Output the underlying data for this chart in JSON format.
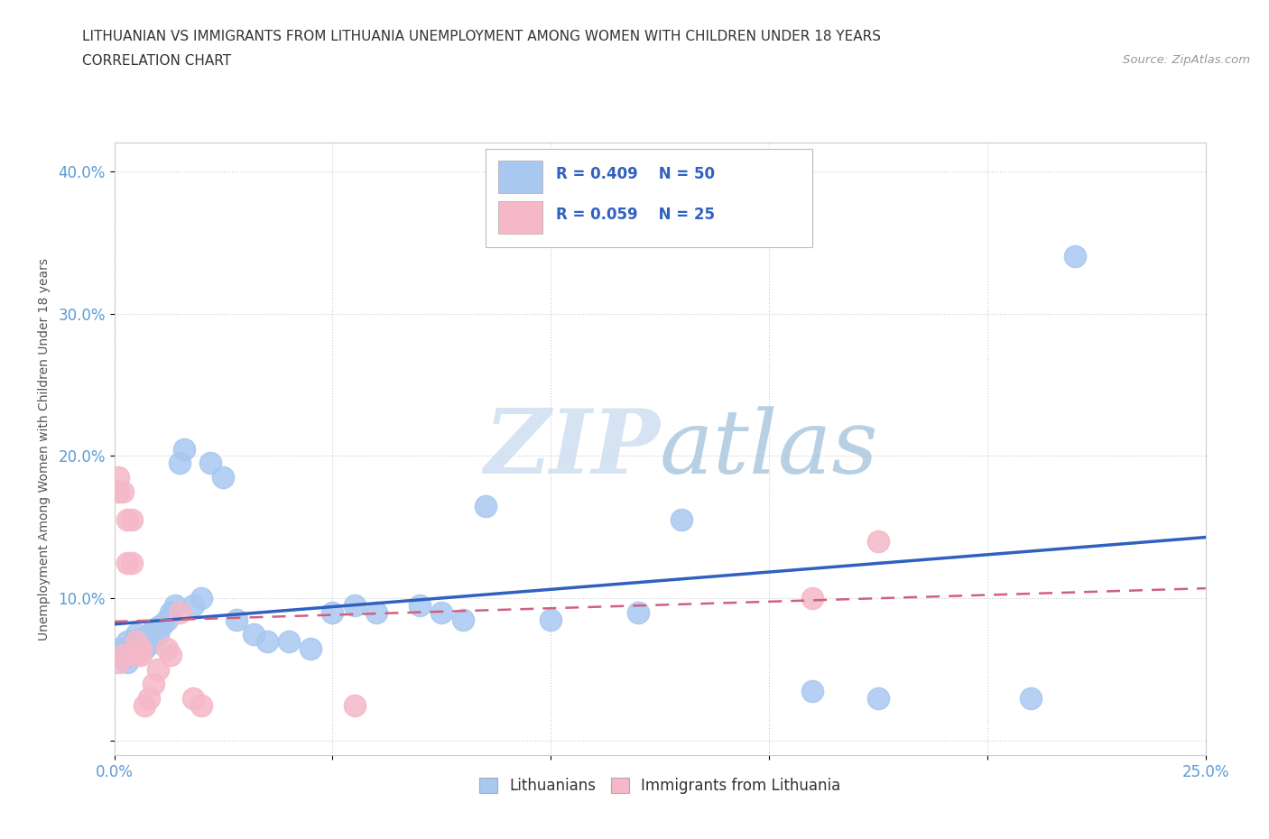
{
  "title_line1": "LITHUANIAN VS IMMIGRANTS FROM LITHUANIA UNEMPLOYMENT AMONG WOMEN WITH CHILDREN UNDER 18 YEARS",
  "title_line2": "CORRELATION CHART",
  "source_text": "Source: ZipAtlas.com",
  "ylabel": "Unemployment Among Women with Children Under 18 years",
  "xlim": [
    0.0,
    0.25
  ],
  "ylim": [
    -0.01,
    0.42
  ],
  "xticks": [
    0.0,
    0.05,
    0.1,
    0.15,
    0.2,
    0.25
  ],
  "yticks": [
    0.0,
    0.1,
    0.2,
    0.3,
    0.4
  ],
  "xtick_labels": [
    "0.0%",
    "",
    "",
    "",
    "",
    "25.0%"
  ],
  "ytick_labels": [
    "",
    "10.0%",
    "20.0%",
    "30.0%",
    "40.0%"
  ],
  "background_color": "#ffffff",
  "watermark_text1": "ZIP",
  "watermark_text2": "atlas",
  "legend_R1": "R = 0.409",
  "legend_N1": "N = 50",
  "legend_R2": "R = 0.059",
  "legend_N2": "N = 25",
  "color_blue": "#a8c8f0",
  "color_pink": "#f5b8c8",
  "color_blue_line": "#3060c0",
  "color_pink_line": "#d06080",
  "color_tick": "#5b9bd5",
  "blue_x": [
    0.001,
    0.001,
    0.002,
    0.002,
    0.003,
    0.003,
    0.004,
    0.004,
    0.005,
    0.005,
    0.005,
    0.006,
    0.006,
    0.007,
    0.007,
    0.008,
    0.008,
    0.009,
    0.009,
    0.01,
    0.01,
    0.011,
    0.012,
    0.013,
    0.014,
    0.015,
    0.016,
    0.018,
    0.02,
    0.022,
    0.025,
    0.028,
    0.032,
    0.035,
    0.04,
    0.045,
    0.05,
    0.055,
    0.06,
    0.07,
    0.075,
    0.08,
    0.085,
    0.1,
    0.12,
    0.13,
    0.16,
    0.175,
    0.21,
    0.22
  ],
  "blue_y": [
    0.06,
    0.065,
    0.058,
    0.062,
    0.055,
    0.07,
    0.06,
    0.068,
    0.065,
    0.07,
    0.075,
    0.068,
    0.072,
    0.065,
    0.07,
    0.068,
    0.075,
    0.072,
    0.078,
    0.08,
    0.075,
    0.082,
    0.085,
    0.09,
    0.095,
    0.195,
    0.205,
    0.095,
    0.1,
    0.195,
    0.185,
    0.085,
    0.075,
    0.07,
    0.07,
    0.065,
    0.09,
    0.095,
    0.09,
    0.095,
    0.09,
    0.085,
    0.165,
    0.085,
    0.09,
    0.155,
    0.035,
    0.03,
    0.03,
    0.34
  ],
  "pink_x": [
    0.001,
    0.001,
    0.001,
    0.002,
    0.002,
    0.003,
    0.003,
    0.004,
    0.004,
    0.005,
    0.005,
    0.006,
    0.006,
    0.007,
    0.008,
    0.009,
    0.01,
    0.012,
    0.013,
    0.015,
    0.018,
    0.02,
    0.055,
    0.16,
    0.175
  ],
  "pink_y": [
    0.055,
    0.175,
    0.185,
    0.06,
    0.175,
    0.125,
    0.155,
    0.125,
    0.155,
    0.06,
    0.07,
    0.06,
    0.065,
    0.025,
    0.03,
    0.04,
    0.05,
    0.065,
    0.06,
    0.09,
    0.03,
    0.025,
    0.025,
    0.1,
    0.14
  ]
}
